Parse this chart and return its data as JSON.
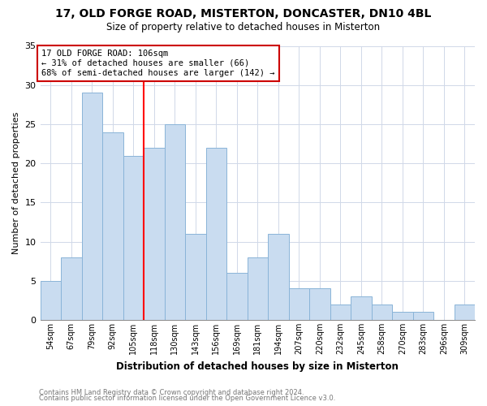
{
  "title": "17, OLD FORGE ROAD, MISTERTON, DONCASTER, DN10 4BL",
  "subtitle": "Size of property relative to detached houses in Misterton",
  "xlabel": "Distribution of detached houses by size in Misterton",
  "ylabel": "Number of detached properties",
  "footer_line1": "Contains HM Land Registry data © Crown copyright and database right 2024.",
  "footer_line2": "Contains public sector information licensed under the Open Government Licence v3.0.",
  "bar_labels": [
    "54sqm",
    "67sqm",
    "79sqm",
    "92sqm",
    "105sqm",
    "118sqm",
    "130sqm",
    "143sqm",
    "156sqm",
    "169sqm",
    "181sqm",
    "194sqm",
    "207sqm",
    "220sqm",
    "232sqm",
    "245sqm",
    "258sqm",
    "270sqm",
    "283sqm",
    "296sqm",
    "309sqm"
  ],
  "bar_values": [
    5,
    8,
    29,
    24,
    21,
    22,
    25,
    11,
    22,
    6,
    8,
    11,
    4,
    4,
    2,
    3,
    2,
    1,
    1,
    0,
    2
  ],
  "bar_color": "#c9dcf0",
  "bar_edgecolor": "#8ab4d8",
  "redline_index": 4,
  "annotation_title": "17 OLD FORGE ROAD: 106sqm",
  "annotation_line2": "← 31% of detached houses are smaller (66)",
  "annotation_line3": "68% of semi-detached houses are larger (142) →",
  "annotation_box_facecolor": "#ffffff",
  "annotation_box_edgecolor": "#cc0000",
  "ylim": [
    0,
    35
  ],
  "yticks": [
    0,
    5,
    10,
    15,
    20,
    25,
    30,
    35
  ],
  "background_color": "#ffffff",
  "grid_color": "#d0d8e8"
}
